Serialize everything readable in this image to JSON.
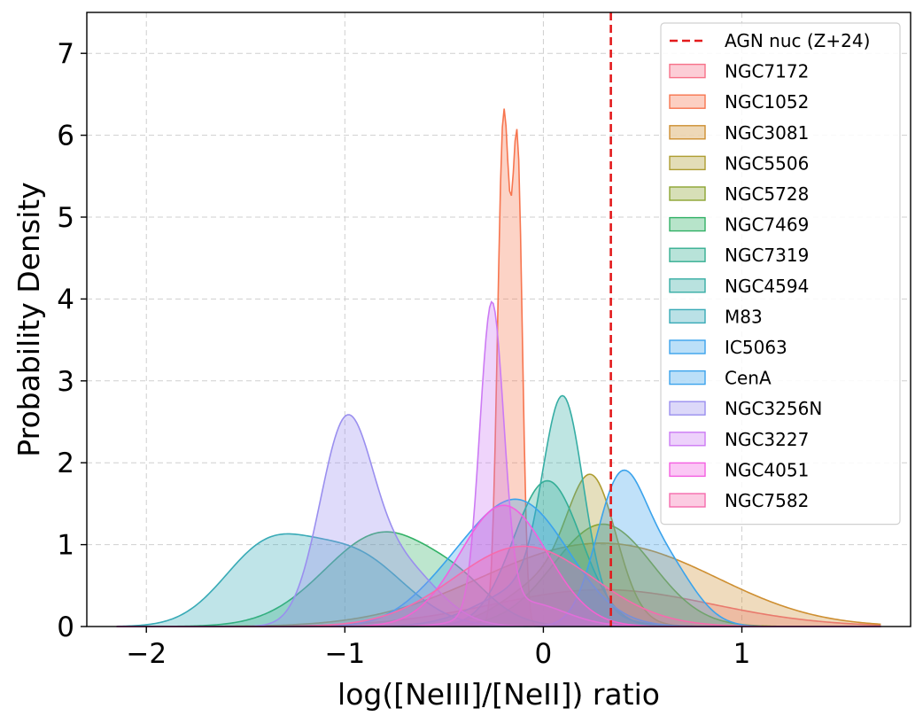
{
  "chart_data": {
    "type": "area",
    "title": "",
    "xlabel": "log([NeIII]/[NeII]) ratio",
    "ylabel": "Probability Density",
    "xlim": [
      -2.3,
      1.85
    ],
    "ylim": [
      0,
      7.5
    ],
    "xticks": [
      {
        "value": -2,
        "label": "−2"
      },
      {
        "value": -1,
        "label": "−1"
      },
      {
        "value": 0,
        "label": "0"
      },
      {
        "value": 1,
        "label": "1"
      }
    ],
    "yticks": [
      {
        "value": 0,
        "label": "0"
      },
      {
        "value": 1,
        "label": "1"
      },
      {
        "value": 2,
        "label": "2"
      },
      {
        "value": 3,
        "label": "3"
      },
      {
        "value": 4,
        "label": "4"
      },
      {
        "value": 5,
        "label": "5"
      },
      {
        "value": 6,
        "label": "6"
      },
      {
        "value": 7,
        "label": "7"
      }
    ],
    "grid": true,
    "legend_position": "top-right",
    "reference_line": {
      "name": "AGN nuc (Z+24)",
      "x": 0.34,
      "color": "#e31a1c",
      "style": "dashed"
    },
    "series": [
      {
        "name": "NGC7172",
        "color": "#f77189",
        "components": [
          {
            "mu": 0.3,
            "sigma": 0.55,
            "amp": 0.45
          }
        ]
      },
      {
        "name": "NGC1052",
        "color": "#f7754f",
        "components": [
          {
            "mu": -0.2,
            "sigma": 0.03,
            "amp": 6.2
          },
          {
            "mu": -0.13,
            "sigma": 0.025,
            "amp": 5.6
          }
        ]
      },
      {
        "name": "NGC3081",
        "color": "#ce8f31",
        "components": [
          {
            "mu": 0.05,
            "sigma": 0.5,
            "amp": 0.7
          },
          {
            "mu": 0.6,
            "sigma": 0.45,
            "amp": 0.5
          }
        ]
      },
      {
        "name": "NGC5506",
        "color": "#ae9d31",
        "components": [
          {
            "mu": 0.25,
            "sigma": 0.12,
            "amp": 1.45
          },
          {
            "mu": 0.05,
            "sigma": 0.22,
            "amp": 0.6
          }
        ]
      },
      {
        "name": "NGC5728",
        "color": "#8ba431",
        "components": [
          {
            "mu": 0.3,
            "sigma": 0.25,
            "amp": 1.25
          }
        ]
      },
      {
        "name": "NGC7469",
        "color": "#32b166",
        "components": [
          {
            "mu": -0.8,
            "sigma": 0.3,
            "amp": 1.15
          },
          {
            "mu": -0.4,
            "sigma": 0.15,
            "amp": 0.2
          }
        ]
      },
      {
        "name": "NGC7319",
        "color": "#34ae91",
        "components": [
          {
            "mu": 0.02,
            "sigma": 0.17,
            "amp": 1.78
          }
        ]
      },
      {
        "name": "NGC4594",
        "color": "#36ada4",
        "components": [
          {
            "mu": 0.1,
            "sigma": 0.1,
            "amp": 2.4
          },
          {
            "mu": -0.05,
            "sigma": 0.25,
            "amp": 0.5
          }
        ]
      },
      {
        "name": "M83",
        "color": "#38aab6",
        "components": [
          {
            "mu": -1.4,
            "sigma": 0.22,
            "amp": 0.9
          },
          {
            "mu": -0.95,
            "sigma": 0.25,
            "amp": 0.85
          }
        ]
      },
      {
        "name": "IC5063",
        "color": "#3ba3ec",
        "components": [
          {
            "mu": 0.38,
            "sigma": 0.12,
            "amp": 1.6
          },
          {
            "mu": 0.6,
            "sigma": 0.15,
            "amp": 0.8
          }
        ]
      },
      {
        "name": "CenA",
        "color": "#3ba3ec",
        "components": [
          {
            "mu": -0.12,
            "sigma": 0.25,
            "amp": 1.5
          },
          {
            "mu": -0.5,
            "sigma": 0.2,
            "amp": 0.3
          }
        ]
      },
      {
        "name": "NGC3256N",
        "color": "#9a8fef",
        "components": [
          {
            "mu": -1.0,
            "sigma": 0.13,
            "amp": 2.2
          },
          {
            "mu": -0.75,
            "sigma": 0.2,
            "amp": 0.8
          }
        ]
      },
      {
        "name": "NGC3227",
        "color": "#cc7af4",
        "components": [
          {
            "mu": -0.26,
            "sigma": 0.06,
            "amp": 3.75
          },
          {
            "mu": -0.1,
            "sigma": 0.2,
            "amp": 0.3
          }
        ]
      },
      {
        "name": "NGC4051",
        "color": "#f45fe1",
        "components": [
          {
            "mu": -0.2,
            "sigma": 0.22,
            "amp": 1.48
          }
        ]
      },
      {
        "name": "NGC7582",
        "color": "#f66bad",
        "components": [
          {
            "mu": -0.1,
            "sigma": 0.35,
            "amp": 0.98
          }
        ]
      }
    ]
  }
}
